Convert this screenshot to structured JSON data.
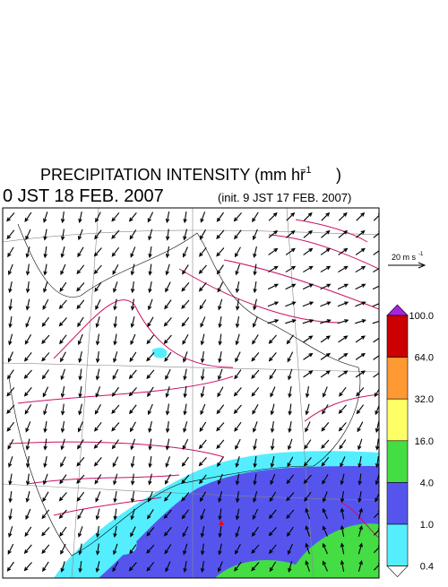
{
  "header": {
    "title": "PRECIPITATION INTENSITY (mm hr",
    "title_exponent": "−1",
    "title_close": ")",
    "valid_time": "0 JST 18 FEB. 2007",
    "init_time": "(init. 9 JST 17 FEB. 2007)"
  },
  "wind_scale": {
    "label": "20 m s",
    "exponent": "-1"
  },
  "colorbar": {
    "levels": [
      {
        "label": "100.0",
        "color": "#cc0000"
      },
      {
        "label": "64.0",
        "color": "#ff9933"
      },
      {
        "label": "32.0",
        "color": "#ffff66"
      },
      {
        "label": "16.0",
        "color": "#44dd44"
      },
      {
        "label": "4.0",
        "color": "#5555ee"
      },
      {
        "label": "1.0",
        "color": "#55eeff"
      },
      {
        "label": "0.4",
        "color": "#ffffff"
      }
    ],
    "over_color": "#aa22dd"
  }
}
